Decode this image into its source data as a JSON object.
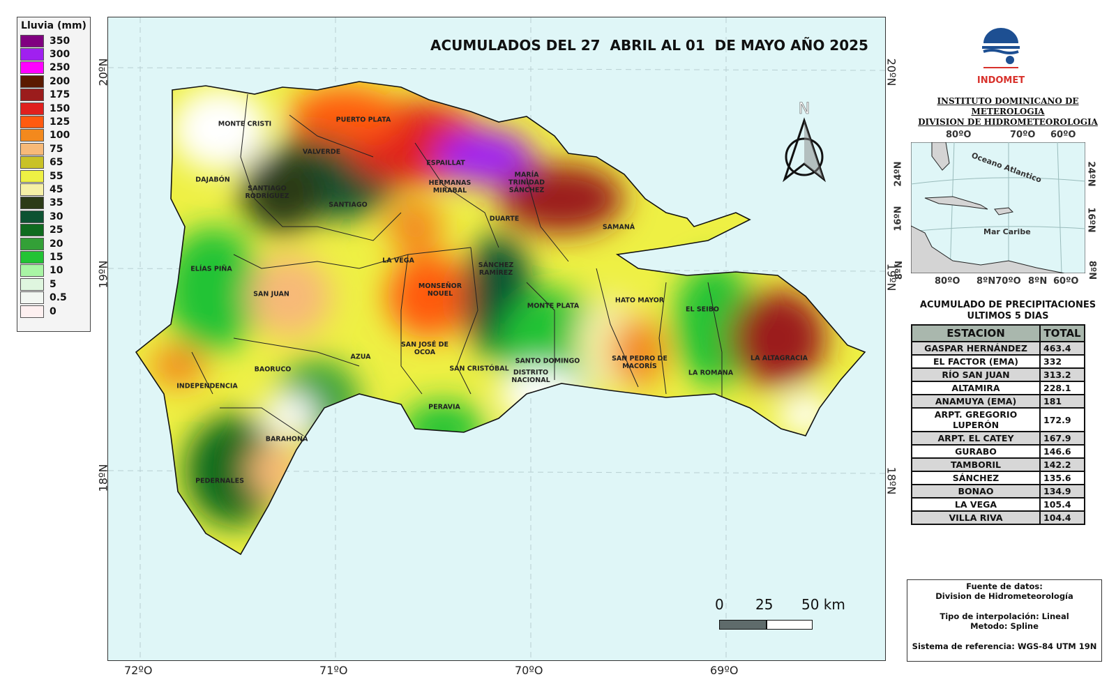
{
  "legend": {
    "title": "Lluvia (mm)",
    "items": [
      {
        "label": "350",
        "color": "#800080"
      },
      {
        "label": "300",
        "color": "#a020f0"
      },
      {
        "label": "250",
        "color": "#ff00ff"
      },
      {
        "label": "200",
        "color": "#5a1a00"
      },
      {
        "label": "175",
        "color": "#9b1c1c"
      },
      {
        "label": "150",
        "color": "#e0201e"
      },
      {
        "label": "125",
        "color": "#ff5a10"
      },
      {
        "label": "100",
        "color": "#f3891d"
      },
      {
        "label": "75",
        "color": "#f7b978"
      },
      {
        "label": "65",
        "color": "#c9c227"
      },
      {
        "label": "55",
        "color": "#eef044"
      },
      {
        "label": "45",
        "color": "#f6f0a6"
      },
      {
        "label": "35",
        "color": "#2c3b17"
      },
      {
        "label": "30",
        "color": "#0d5232"
      },
      {
        "label": "25",
        "color": "#0f6b1f"
      },
      {
        "label": "20",
        "color": "#33a037"
      },
      {
        "label": "15",
        "color": "#22c335"
      },
      {
        "label": "10",
        "color": "#a9f5a5"
      },
      {
        "label": "5",
        "color": "#dff6df"
      },
      {
        "label": "0.5",
        "color": "#f2f7f2"
      },
      {
        "label": "0",
        "color": "#fdf0f0"
      }
    ]
  },
  "map": {
    "title": "ACUMULADOS DEL 27  ABRIL AL 01  DE MAYO AÑO 2025",
    "lon_labels": [
      "72ºO",
      "71ºO",
      "70ºO",
      "69ºO"
    ],
    "lat_labels": [
      "20ºN",
      "19ºN",
      "18ºN"
    ],
    "north_label": "N",
    "scale": {
      "labels": [
        "0",
        "25",
        "50 km"
      ]
    },
    "provinces": [
      {
        "name": "MONTE CRISTI"
      },
      {
        "name": "PUERTO PLATA"
      },
      {
        "name": "VALVERDE"
      },
      {
        "name": "ESPAILLAT"
      },
      {
        "name": "DAJABÓN"
      },
      {
        "name": "SANTIAGO\nRODRÍGUEZ"
      },
      {
        "name": "SANTIAGO"
      },
      {
        "name": "HERMANAS\nMIRABAL"
      },
      {
        "name": "MARÍA\nTRINIDAD\nSÁNCHEZ"
      },
      {
        "name": "DUARTE"
      },
      {
        "name": "SAMANÁ"
      },
      {
        "name": "LA VEGA"
      },
      {
        "name": "ELÍAS PIÑA"
      },
      {
        "name": "SAN JUAN"
      },
      {
        "name": "MONSEÑOR\nNOUEL"
      },
      {
        "name": "SÁNCHEZ\nRAMÍREZ"
      },
      {
        "name": "MONTE PLATA"
      },
      {
        "name": "HATO MAYOR"
      },
      {
        "name": "EL SEIBO"
      },
      {
        "name": "LA ALTAGRACIA"
      },
      {
        "name": "SAN JOSÉ DE\nOCOA"
      },
      {
        "name": "AZUA"
      },
      {
        "name": "BAORUCO"
      },
      {
        "name": "INDEPENDENCIA"
      },
      {
        "name": "SAN CRISTÓBAL"
      },
      {
        "name": "SANTO DOMINGO"
      },
      {
        "name": "DISTRITO\nNACIONAL"
      },
      {
        "name": "SAN PEDRO DE\nMACORÍS"
      },
      {
        "name": "LA ROMANA"
      },
      {
        "name": "PERAVIA"
      },
      {
        "name": "BARAHONA"
      },
      {
        "name": "PEDERNALES"
      }
    ]
  },
  "org": {
    "logo_text": "INDOMET",
    "line1": "INSTITUTO DOMINICANO DE METEROLOGIA",
    "line2": "DIVISION DE HIDROMETEOROLOGIA"
  },
  "inset": {
    "top_labels": [
      "80ºO",
      "70ºO",
      "60ºO"
    ],
    "bottom_labels": [
      "80ºO",
      "8ºN70ºO",
      "8ºN",
      "60ºO"
    ],
    "left_labels": [
      "24ºN",
      "16ºN",
      "8ºN"
    ],
    "right_labels": [
      "24ºN",
      "16ºN",
      "8ºN"
    ],
    "ocean": "Oceano Atlantico",
    "sea": "Mar Caribe"
  },
  "table": {
    "title1": "ACUMULADO DE PRECIPITACIONES",
    "title2": "ULTIMOS 5 DIAS",
    "headers": [
      "ESTACION",
      "TOTAL"
    ],
    "rows": [
      {
        "station": "GASPAR HERNÁNDEZ",
        "total": "463.4"
      },
      {
        "station": "EL FACTOR (EMA)",
        "total": "332"
      },
      {
        "station": "RÍO SAN JUAN",
        "total": "313.2"
      },
      {
        "station": "ALTAMIRA",
        "total": "228.1"
      },
      {
        "station": "ANAMUYA (EMA)",
        "total": "181"
      },
      {
        "station": "ARPT. GREGORIO LUPERÓN",
        "total": "172.9"
      },
      {
        "station": "ARPT. EL CATEY",
        "total": "167.9"
      },
      {
        "station": "GURABO",
        "total": "146.6"
      },
      {
        "station": "TAMBORIL",
        "total": "142.2"
      },
      {
        "station": "SÁNCHEZ",
        "total": "135.6"
      },
      {
        "station": "BONAO",
        "total": "134.9"
      },
      {
        "station": "LA VEGA",
        "total": "105.4"
      },
      {
        "station": "VILLA RIVA",
        "total": "104.4"
      }
    ]
  },
  "info": {
    "source_title": "Fuente de datos:",
    "source": "Division de Hidrometeorología",
    "interp": "Tipo de interpolación: Lineal",
    "method": "Metodo: Spline",
    "ref": "Sistema de referencia: WGS-84 UTM 19N"
  }
}
